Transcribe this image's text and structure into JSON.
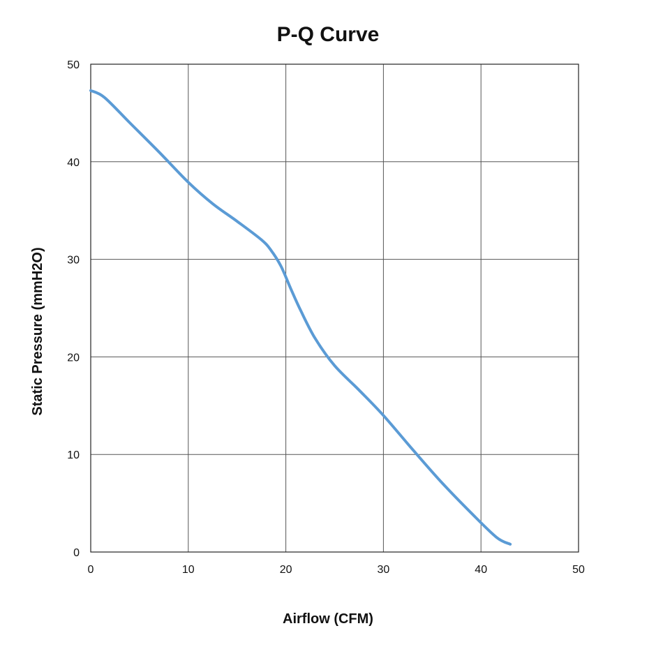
{
  "chart_data": {
    "type": "line",
    "title": "P-Q Curve",
    "xlabel": "Airflow (CFM)",
    "ylabel": "Static Pressure (mmH2O)",
    "xlim": [
      0,
      50
    ],
    "ylim": [
      0,
      50
    ],
    "xticks": [
      0,
      10,
      20,
      30,
      40,
      50
    ],
    "yticks": [
      0,
      10,
      20,
      30,
      40,
      50
    ],
    "xtick_labels": [
      "0",
      "10",
      "20",
      "30",
      "40",
      "50"
    ],
    "ytick_labels": [
      "0",
      "10",
      "20",
      "30",
      "40",
      "50"
    ],
    "grid": true,
    "legend": "none",
    "series": [
      {
        "color": "#5b9bd5",
        "x": [
          0,
          1.4,
          4,
          7,
          10,
          12.5,
          15,
          17.5,
          18.5,
          19.5,
          20.5,
          21.5,
          23,
          25,
          27.5,
          30,
          33,
          36,
          39,
          41.6,
          43
        ],
        "y": [
          47.3,
          46.6,
          44.0,
          41.0,
          37.9,
          35.7,
          33.9,
          32.0,
          30.9,
          29.3,
          27.0,
          24.8,
          21.9,
          19.1,
          16.6,
          14.0,
          10.5,
          7.1,
          4.0,
          1.5,
          0.8
        ]
      }
    ]
  }
}
